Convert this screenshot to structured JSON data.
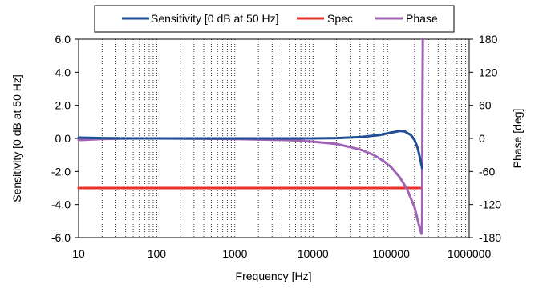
{
  "chart_data": {
    "type": "line",
    "xlabel": "Frequency [Hz]",
    "ylabel": "Sensitivity [0 dB at 50 Hz]",
    "y2label": "Phase [deg]",
    "x_scale": "log",
    "xlim": [
      10,
      1000000
    ],
    "ylim": [
      -6,
      6
    ],
    "y2lim": [
      -180,
      180
    ],
    "x_ticks": [
      10,
      100,
      1000,
      10000,
      100000,
      1000000
    ],
    "x_tick_labels": [
      "10",
      "100",
      "1000",
      "10000",
      "100000",
      "1000000"
    ],
    "y_ticks": [
      -6,
      -4,
      -2,
      0,
      2,
      4,
      6
    ],
    "y_tick_labels": [
      "-6.0",
      "-4.0",
      "-2.0",
      "0.0",
      "2.0",
      "4.0",
      "6.0"
    ],
    "y2_ticks": [
      -180,
      -120,
      -60,
      0,
      60,
      120,
      180
    ],
    "y2_tick_labels": [
      "-180",
      "-120",
      "-60",
      "0",
      "60",
      "120",
      "180"
    ],
    "grid": "vertical minor",
    "legend_position": "top",
    "series": [
      {
        "name": "Sensitivity [0 dB at 50 Hz]",
        "axis": "left",
        "color": "#1f4e96",
        "x": [
          10,
          20,
          50,
          100,
          500,
          1000,
          5000,
          10000,
          20000,
          40000,
          70000,
          100000,
          130000,
          150000,
          180000,
          200000,
          220000,
          240000,
          250000
        ],
        "y": [
          0.05,
          0.02,
          0.0,
          0.0,
          0.0,
          0.0,
          0.0,
          0.0,
          0.02,
          0.08,
          0.2,
          0.35,
          0.45,
          0.42,
          0.2,
          -0.1,
          -0.6,
          -1.4,
          -1.8
        ]
      },
      {
        "name": "Spec",
        "axis": "left",
        "color": "#e8312a",
        "x": [
          10,
          250000
        ],
        "y": [
          -3.0,
          -3.0
        ]
      },
      {
        "name": "Phase",
        "axis": "right",
        "color": "#a064b4",
        "x": [
          10,
          20,
          50,
          100,
          1000,
          5000,
          10000,
          20000,
          40000,
          60000,
          80000,
          100000,
          130000,
          160000,
          200000,
          230000,
          245000,
          250000,
          252000,
          255000
        ],
        "y": [
          -3,
          -1,
          0,
          0,
          -1,
          -3,
          -6,
          -10,
          -20,
          -30,
          -41,
          -52,
          -71,
          -92,
          -125,
          -160,
          -173,
          -150,
          60,
          180
        ]
      }
    ]
  }
}
